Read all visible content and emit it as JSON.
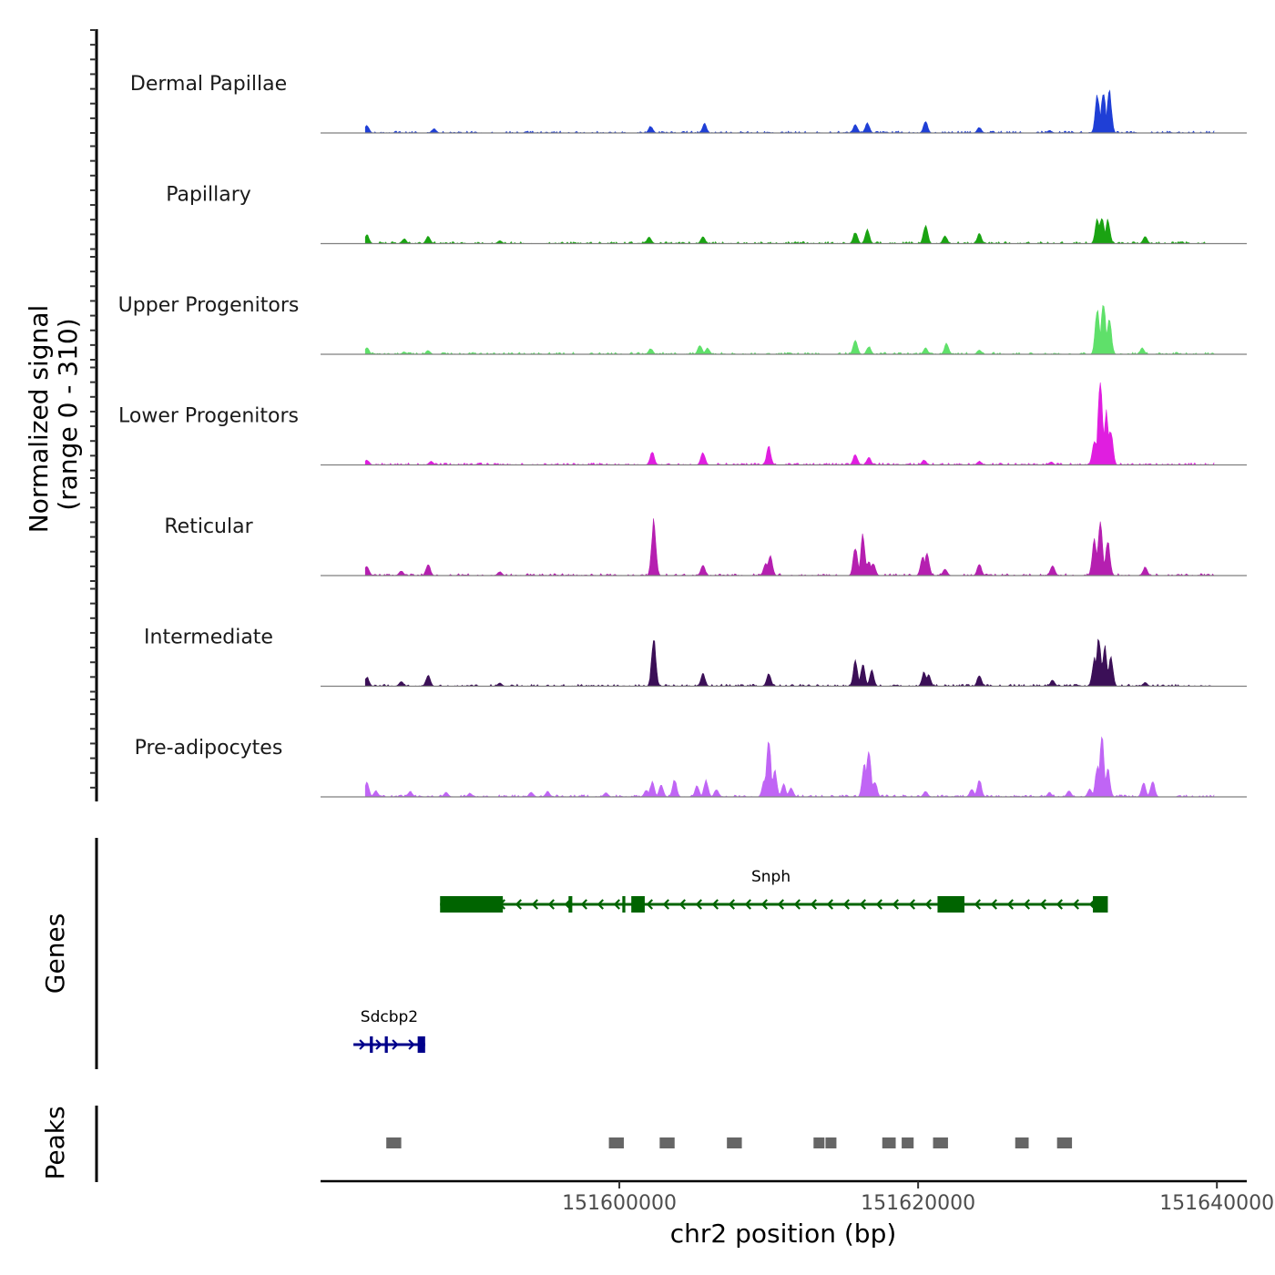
{
  "chart_data": {
    "type": "area",
    "chromosome": "chr2",
    "xlabel": "chr2 position (bp)",
    "ylabel": "Normalized signal",
    "ylabel_range": "(range 0 - 310)",
    "xlim": [
      151580000,
      151642000
    ],
    "ylim": [
      0,
      310
    ],
    "x_ticks": [
      151600000,
      151620000,
      151640000
    ],
    "x_tick_labels": [
      "151600000",
      "151620000",
      "151640000"
    ],
    "tracks": [
      {
        "name": "Dermal Papillae",
        "color": "#1f3fd6",
        "peaks": [
          [
            151583100,
            25
          ],
          [
            151587600,
            14
          ],
          [
            151602100,
            22
          ],
          [
            151605700,
            30
          ],
          [
            151615800,
            28
          ],
          [
            151616600,
            33
          ],
          [
            151620500,
            36
          ],
          [
            151624100,
            18
          ],
          [
            151632000,
            120
          ],
          [
            151632400,
            138
          ],
          [
            151632800,
            135
          ],
          [
            151628800,
            8
          ]
        ]
      },
      {
        "name": "Papillary",
        "color": "#1aa312",
        "peaks": [
          [
            151583100,
            30
          ],
          [
            151585600,
            16
          ],
          [
            151587200,
            24
          ],
          [
            151592000,
            10
          ],
          [
            151602000,
            22
          ],
          [
            151605600,
            22
          ],
          [
            151615800,
            37
          ],
          [
            151616600,
            45
          ],
          [
            151620500,
            60
          ],
          [
            151621800,
            25
          ],
          [
            151624100,
            33
          ],
          [
            151632000,
            80
          ],
          [
            151632300,
            85
          ],
          [
            151632700,
            78
          ],
          [
            151635200,
            23
          ]
        ]
      },
      {
        "name": "Upper Progenitors",
        "color": "#5fe06a",
        "peaks": [
          [
            151583100,
            22
          ],
          [
            151585600,
            8
          ],
          [
            151587200,
            12
          ],
          [
            151602100,
            18
          ],
          [
            151605400,
            30
          ],
          [
            151605900,
            20
          ],
          [
            151615800,
            48
          ],
          [
            151616700,
            25
          ],
          [
            151620500,
            20
          ],
          [
            151621900,
            34
          ],
          [
            151624100,
            14
          ],
          [
            151632000,
            150
          ],
          [
            151632400,
            170
          ],
          [
            151632800,
            110
          ],
          [
            151635000,
            20
          ]
        ]
      },
      {
        "name": "Lower Progenitors",
        "color": "#e01ee0",
        "peaks": [
          [
            151583100,
            16
          ],
          [
            151587400,
            12
          ],
          [
            151602200,
            42
          ],
          [
            151605600,
            40
          ],
          [
            151610000,
            60
          ],
          [
            151615800,
            35
          ],
          [
            151616700,
            25
          ],
          [
            151620400,
            16
          ],
          [
            151624100,
            12
          ],
          [
            151631800,
            80
          ],
          [
            151632200,
            290
          ],
          [
            151632600,
            170
          ],
          [
            151632900,
            110
          ],
          [
            151628900,
            10
          ]
        ]
      },
      {
        "name": "Reticular",
        "color": "#b51fb0",
        "peaks": [
          [
            151583100,
            32
          ],
          [
            151585400,
            15
          ],
          [
            151587200,
            37
          ],
          [
            151592000,
            13
          ],
          [
            151602300,
            178
          ],
          [
            151605600,
            33
          ],
          [
            151609800,
            42
          ],
          [
            151610100,
            68
          ],
          [
            151615800,
            92
          ],
          [
            151616300,
            128
          ],
          [
            151616700,
            45
          ],
          [
            151617000,
            40
          ],
          [
            151620300,
            62
          ],
          [
            151620600,
            73
          ],
          [
            151621800,
            22
          ],
          [
            151624100,
            38
          ],
          [
            151629000,
            33
          ],
          [
            151631800,
            120
          ],
          [
            151632200,
            182
          ],
          [
            151632700,
            115
          ],
          [
            151635200,
            27
          ]
        ]
      },
      {
        "name": "Intermediate",
        "color": "#3b0f57",
        "peaks": [
          [
            151583100,
            30
          ],
          [
            151585400,
            15
          ],
          [
            151587200,
            36
          ],
          [
            151592000,
            10
          ],
          [
            151602300,
            150
          ],
          [
            151605600,
            40
          ],
          [
            151610000,
            40
          ],
          [
            151615800,
            80
          ],
          [
            151616300,
            72
          ],
          [
            151616900,
            50
          ],
          [
            151620400,
            45
          ],
          [
            151620700,
            38
          ],
          [
            151624100,
            37
          ],
          [
            151629000,
            20
          ],
          [
            151631800,
            90
          ],
          [
            151632100,
            155
          ],
          [
            151632500,
            130
          ],
          [
            151632900,
            90
          ],
          [
            151635200,
            12
          ]
        ]
      },
      {
        "name": "Pre-adipocytes",
        "color": "#c065f5",
        "peaks": [
          [
            151583100,
            45
          ],
          [
            151583700,
            20
          ],
          [
            151586000,
            18
          ],
          [
            151588400,
            15
          ],
          [
            151590000,
            12
          ],
          [
            151594100,
            16
          ],
          [
            151595200,
            18
          ],
          [
            151599100,
            14
          ],
          [
            151601800,
            22
          ],
          [
            151602200,
            47
          ],
          [
            151602800,
            37
          ],
          [
            151603700,
            55
          ],
          [
            151605200,
            35
          ],
          [
            151605800,
            52
          ],
          [
            151606500,
            25
          ],
          [
            151609700,
            52
          ],
          [
            151610000,
            180
          ],
          [
            151610400,
            85
          ],
          [
            151611000,
            40
          ],
          [
            151611500,
            30
          ],
          [
            151616400,
            110
          ],
          [
            151616700,
            150
          ],
          [
            151617100,
            50
          ],
          [
            151620500,
            18
          ],
          [
            151623600,
            25
          ],
          [
            151624100,
            55
          ],
          [
            151628800,
            14
          ],
          [
            151630100,
            20
          ],
          [
            151631500,
            25
          ],
          [
            151632000,
            100
          ],
          [
            151632300,
            195
          ],
          [
            151632700,
            90
          ],
          [
            151635100,
            45
          ],
          [
            151635700,
            52
          ]
        ]
      }
    ],
    "genes": [
      {
        "name": "Snph",
        "strand": "-",
        "color": "#006400",
        "line": [
          151588000,
          151632300
        ],
        "exons": [
          [
            151588000,
            151592200
          ],
          [
            151596600,
            151596850
          ],
          [
            151600200,
            151600400
          ],
          [
            151600800,
            151601700
          ],
          [
            151621300,
            151623100
          ],
          [
            151631700,
            151632700
          ]
        ]
      },
      {
        "name": "Sdcbp2",
        "strand": "+",
        "color": "#00008b",
        "line": [
          151582200,
          151587000
        ],
        "exons": [
          [
            151583300,
            151583500
          ],
          [
            151584300,
            151584500
          ],
          [
            151586500,
            151587000
          ]
        ]
      }
    ],
    "peaks_track": [
      [
        151584400,
        151585400
      ],
      [
        151599300,
        151600300
      ],
      [
        151602700,
        151603700
      ],
      [
        151607200,
        151608200
      ],
      [
        151613000,
        151613700
      ],
      [
        151613800,
        151614500
      ],
      [
        151617600,
        151618500
      ],
      [
        151618900,
        151619700
      ],
      [
        151621000,
        151622000
      ],
      [
        151626500,
        151627400
      ],
      [
        151629300,
        151630300
      ]
    ],
    "panels": [
      "Genes",
      "Peaks"
    ]
  }
}
